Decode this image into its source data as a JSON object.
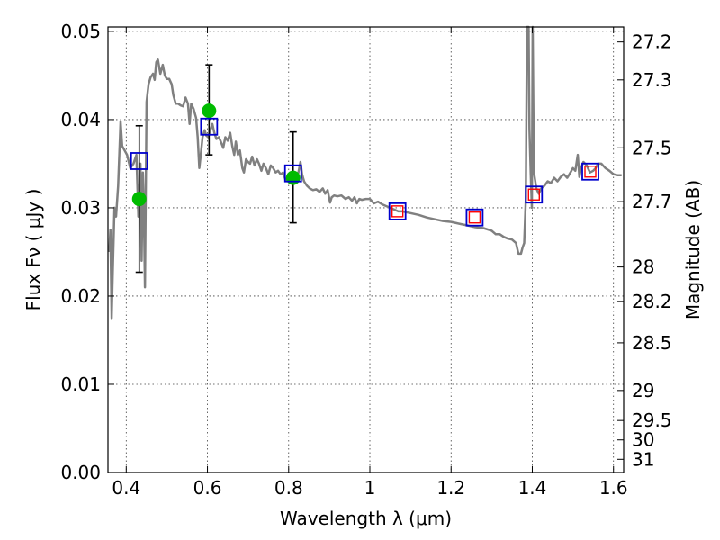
{
  "chart_data": {
    "type": "line",
    "xlabel": "Wavelength  λ (μm)",
    "ylabel": "Flux  Fν  ( μJy )",
    "ylabel_right": "Magnitude (AB)",
    "xlim": [
      0.355,
      1.625
    ],
    "ylim": [
      0.0,
      0.0505
    ],
    "grid": true,
    "x_ticks": [
      0.4,
      0.6,
      0.8,
      1.0,
      1.2,
      1.4,
      1.6
    ],
    "x_tick_labels": [
      "0.4",
      "0.6",
      "0.8",
      "1",
      "1.2",
      "1.4",
      "1.6"
    ],
    "y_ticks": [
      0.0,
      0.01,
      0.02,
      0.03,
      0.04,
      0.05
    ],
    "y_tick_labels": [
      "0.00",
      "0.01",
      "0.02",
      "0.03",
      "0.04",
      "0.05"
    ],
    "right_ticks": [
      {
        "label": "27.2",
        "flux": 0.0488
      },
      {
        "label": "27.3",
        "flux": 0.0445
      },
      {
        "label": "27.5",
        "flux": 0.0368
      },
      {
        "label": "27.7",
        "flux": 0.0307
      },
      {
        "label": "28",
        "flux": 0.0233
      },
      {
        "label": "28.2",
        "flux": 0.0194
      },
      {
        "label": "28.5",
        "flux": 0.0147
      },
      {
        "label": "29",
        "flux": 0.0093
      },
      {
        "label": "29.5",
        "flux": 0.0059
      },
      {
        "label": "30",
        "flux": 0.0037
      },
      {
        "label": "31",
        "flux": 0.0015
      }
    ],
    "series": [
      {
        "style": "model-spectrum",
        "color": "#808080",
        "points": [
          [
            0.358,
            0.025
          ],
          [
            0.361,
            0.0275
          ],
          [
            0.364,
            0.0175
          ],
          [
            0.367,
            0.023
          ],
          [
            0.371,
            0.03
          ],
          [
            0.375,
            0.029
          ],
          [
            0.38,
            0.0325
          ],
          [
            0.386,
            0.0398
          ],
          [
            0.39,
            0.037
          ],
          [
            0.396,
            0.0365
          ],
          [
            0.402,
            0.036
          ],
          [
            0.41,
            0.0345
          ],
          [
            0.418,
            0.035
          ],
          [
            0.425,
            0.036
          ],
          [
            0.43,
            0.029
          ],
          [
            0.435,
            0.035
          ],
          [
            0.438,
            0.024
          ],
          [
            0.441,
            0.034
          ],
          [
            0.443,
            0.031
          ],
          [
            0.446,
            0.021
          ],
          [
            0.45,
            0.042
          ],
          [
            0.455,
            0.044
          ],
          [
            0.46,
            0.0448
          ],
          [
            0.466,
            0.0452
          ],
          [
            0.47,
            0.0445
          ],
          [
            0.474,
            0.0465
          ],
          [
            0.478,
            0.0468
          ],
          [
            0.484,
            0.0452
          ],
          [
            0.49,
            0.0462
          ],
          [
            0.495,
            0.045
          ],
          [
            0.5,
            0.0446
          ],
          [
            0.506,
            0.0446
          ],
          [
            0.512,
            0.044
          ],
          [
            0.516,
            0.0428
          ],
          [
            0.522,
            0.0418
          ],
          [
            0.528,
            0.0418
          ],
          [
            0.534,
            0.0416
          ],
          [
            0.54,
            0.0415
          ],
          [
            0.546,
            0.0425
          ],
          [
            0.552,
            0.0418
          ],
          [
            0.556,
            0.0395
          ],
          [
            0.56,
            0.0418
          ],
          [
            0.566,
            0.0412
          ],
          [
            0.572,
            0.0402
          ],
          [
            0.576,
            0.038
          ],
          [
            0.58,
            0.0345
          ],
          [
            0.584,
            0.0362
          ],
          [
            0.588,
            0.038
          ],
          [
            0.593,
            0.0388
          ],
          [
            0.597,
            0.0382
          ],
          [
            0.602,
            0.038
          ],
          [
            0.607,
            0.0388
          ],
          [
            0.612,
            0.0395
          ],
          [
            0.617,
            0.0385
          ],
          [
            0.622,
            0.0378
          ],
          [
            0.628,
            0.038
          ],
          [
            0.633,
            0.0375
          ],
          [
            0.639,
            0.0368
          ],
          [
            0.644,
            0.038
          ],
          [
            0.65,
            0.0376
          ],
          [
            0.656,
            0.0385
          ],
          [
            0.661,
            0.037
          ],
          [
            0.666,
            0.036
          ],
          [
            0.67,
            0.0375
          ],
          [
            0.675,
            0.036
          ],
          [
            0.68,
            0.0365
          ],
          [
            0.686,
            0.0345
          ],
          [
            0.69,
            0.034
          ],
          [
            0.695,
            0.0355
          ],
          [
            0.7,
            0.0352
          ],
          [
            0.705,
            0.035
          ],
          [
            0.71,
            0.0358
          ],
          [
            0.716,
            0.0348
          ],
          [
            0.722,
            0.0355
          ],
          [
            0.727,
            0.035
          ],
          [
            0.733,
            0.0342
          ],
          [
            0.738,
            0.035
          ],
          [
            0.744,
            0.0345
          ],
          [
            0.75,
            0.0338
          ],
          [
            0.756,
            0.0348
          ],
          [
            0.762,
            0.0345
          ],
          [
            0.768,
            0.034
          ],
          [
            0.774,
            0.0342
          ],
          [
            0.78,
            0.0338
          ],
          [
            0.786,
            0.034
          ],
          [
            0.792,
            0.0332
          ],
          [
            0.798,
            0.0332
          ],
          [
            0.804,
            0.034
          ],
          [
            0.81,
            0.0335
          ],
          [
            0.816,
            0.0338
          ],
          [
            0.82,
            0.033
          ],
          [
            0.824,
            0.034
          ],
          [
            0.829,
            0.0352
          ],
          [
            0.833,
            0.0338
          ],
          [
            0.838,
            0.033
          ],
          [
            0.845,
            0.0325
          ],
          [
            0.852,
            0.0322
          ],
          [
            0.86,
            0.032
          ],
          [
            0.868,
            0.0321
          ],
          [
            0.876,
            0.0318
          ],
          [
            0.884,
            0.0322
          ],
          [
            0.89,
            0.0316
          ],
          [
            0.896,
            0.032
          ],
          [
            0.902,
            0.0306
          ],
          [
            0.906,
            0.0312
          ],
          [
            0.912,
            0.0314
          ],
          [
            0.92,
            0.0313
          ],
          [
            0.93,
            0.0314
          ],
          [
            0.94,
            0.031
          ],
          [
            0.948,
            0.0312
          ],
          [
            0.956,
            0.0308
          ],
          [
            0.962,
            0.0312
          ],
          [
            0.968,
            0.0305
          ],
          [
            0.974,
            0.031
          ],
          [
            0.98,
            0.0309
          ],
          [
            0.99,
            0.031
          ],
          [
            1.0,
            0.031
          ],
          [
            1.01,
            0.0305
          ],
          [
            1.02,
            0.0307
          ],
          [
            1.03,
            0.0304
          ],
          [
            1.04,
            0.0302
          ],
          [
            1.05,
            0.03
          ],
          [
            1.06,
            0.0298
          ],
          [
            1.07,
            0.0296
          ],
          [
            1.08,
            0.0296
          ],
          [
            1.1,
            0.0294
          ],
          [
            1.12,
            0.0292
          ],
          [
            1.14,
            0.0289
          ],
          [
            1.16,
            0.0287
          ],
          [
            1.18,
            0.0285
          ],
          [
            1.2,
            0.0284
          ],
          [
            1.22,
            0.0282
          ],
          [
            1.24,
            0.028
          ],
          [
            1.26,
            0.0278
          ],
          [
            1.28,
            0.0277
          ],
          [
            1.3,
            0.0274
          ],
          [
            1.31,
            0.027
          ],
          [
            1.32,
            0.027
          ],
          [
            1.33,
            0.0267
          ],
          [
            1.34,
            0.0265
          ],
          [
            1.35,
            0.0264
          ],
          [
            1.36,
            0.026
          ],
          [
            1.366,
            0.0248
          ],
          [
            1.372,
            0.0248
          ],
          [
            1.376,
            0.0255
          ],
          [
            1.38,
            0.026
          ],
          [
            1.384,
            0.031
          ],
          [
            1.387,
            0.0505
          ],
          [
            1.391,
            0.0505
          ],
          [
            1.393,
            0.039
          ],
          [
            1.396,
            0.034
          ],
          [
            1.399,
            0.03
          ],
          [
            1.401,
            0.0505
          ],
          [
            1.404,
            0.034
          ],
          [
            1.41,
            0.0322
          ],
          [
            1.416,
            0.0316
          ],
          [
            1.422,
            0.0322
          ],
          [
            1.43,
            0.0325
          ],
          [
            1.438,
            0.033
          ],
          [
            1.446,
            0.0328
          ],
          [
            1.454,
            0.0334
          ],
          [
            1.462,
            0.033
          ],
          [
            1.47,
            0.0335
          ],
          [
            1.478,
            0.0338
          ],
          [
            1.486,
            0.0334
          ],
          [
            1.494,
            0.034
          ],
          [
            1.5,
            0.0345
          ],
          [
            1.506,
            0.0342
          ],
          [
            1.512,
            0.036
          ],
          [
            1.516,
            0.0335
          ],
          [
            1.52,
            0.0345
          ],
          [
            1.526,
            0.0352
          ],
          [
            1.534,
            0.0348
          ],
          [
            1.542,
            0.034
          ],
          [
            1.55,
            0.0342
          ],
          [
            1.556,
            0.0345
          ],
          [
            1.562,
            0.035
          ],
          [
            1.57,
            0.035
          ],
          [
            1.58,
            0.0345
          ],
          [
            1.59,
            0.0342
          ],
          [
            1.6,
            0.0338
          ],
          [
            1.61,
            0.0337
          ],
          [
            1.62,
            0.0337
          ]
        ]
      },
      {
        "style": "model-band-squares",
        "color": "#0000cc",
        "points": [
          [
            0.432,
            0.0353
          ],
          [
            0.604,
            0.0392
          ],
          [
            0.811,
            0.0339
          ],
          [
            1.068,
            0.0296
          ],
          [
            1.258,
            0.0289
          ],
          [
            1.404,
            0.0315
          ],
          [
            1.543,
            0.0341
          ]
        ]
      },
      {
        "style": "observed-squares",
        "color": "#ff0000",
        "points": [
          [
            1.068,
            0.0296
          ],
          [
            1.258,
            0.0289
          ],
          [
            1.404,
            0.0315
          ],
          [
            1.543,
            0.0341
          ]
        ]
      },
      {
        "style": "observed-points-with-errors",
        "color": "#00bb00",
        "points": [
          {
            "x": 0.432,
            "y": 0.031,
            "lo": 0.0227,
            "hi": 0.0393
          },
          {
            "x": 0.604,
            "y": 0.041,
            "lo": 0.036,
            "hi": 0.0462
          },
          {
            "x": 0.811,
            "y": 0.0334,
            "lo": 0.0283,
            "hi": 0.0386
          }
        ]
      }
    ]
  }
}
